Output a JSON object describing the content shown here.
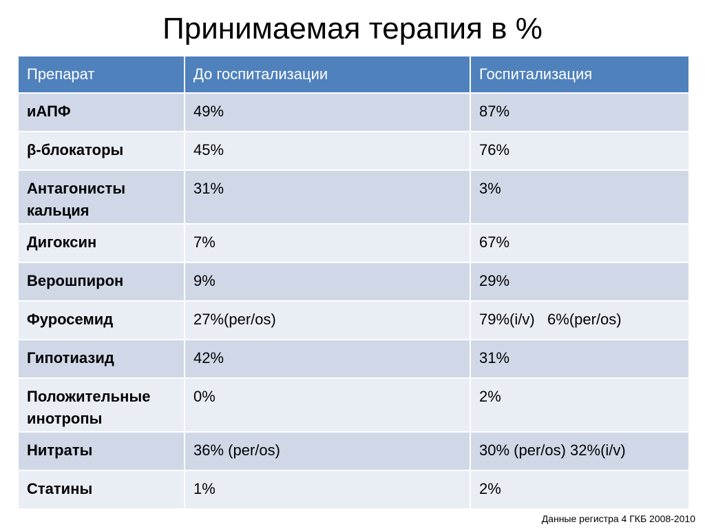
{
  "title": "Принимаемая терапия в %",
  "table": {
    "headers": [
      "Препарат",
      "До госпитализации",
      "Госпитализация"
    ],
    "rows": [
      {
        "drug": "иАПФ",
        "before": "49%",
        "during": "87%"
      },
      {
        "drug": "β-блокаторы",
        "before": "45%",
        "during": "76%"
      },
      {
        "drug": "Антагонисты кальция",
        "before": "31%",
        "during": "3%"
      },
      {
        "drug": "Дигоксин",
        "before": "7%",
        "during": "67%"
      },
      {
        "drug": "Верошпирон",
        "before": "9%",
        "during": "29%"
      },
      {
        "drug": "Фуросемид",
        "before": "27%(per/os)",
        "during": "79%(i/v)   6%(per/os)"
      },
      {
        "drug": "Гипотиазид",
        "before": "42%",
        "during": "31%"
      },
      {
        "drug": "Положительные инотропы",
        "before": "0%",
        "during": "2%"
      },
      {
        "drug": "Нитраты",
        "before": "36% (per/os)",
        "during": "30% (per/os) 32%(i/v)"
      },
      {
        "drug": "Статины",
        "before": "1%",
        "during": "2%"
      }
    ]
  },
  "footnote": "Данные регистра 4 ГКБ 2008-2010"
}
